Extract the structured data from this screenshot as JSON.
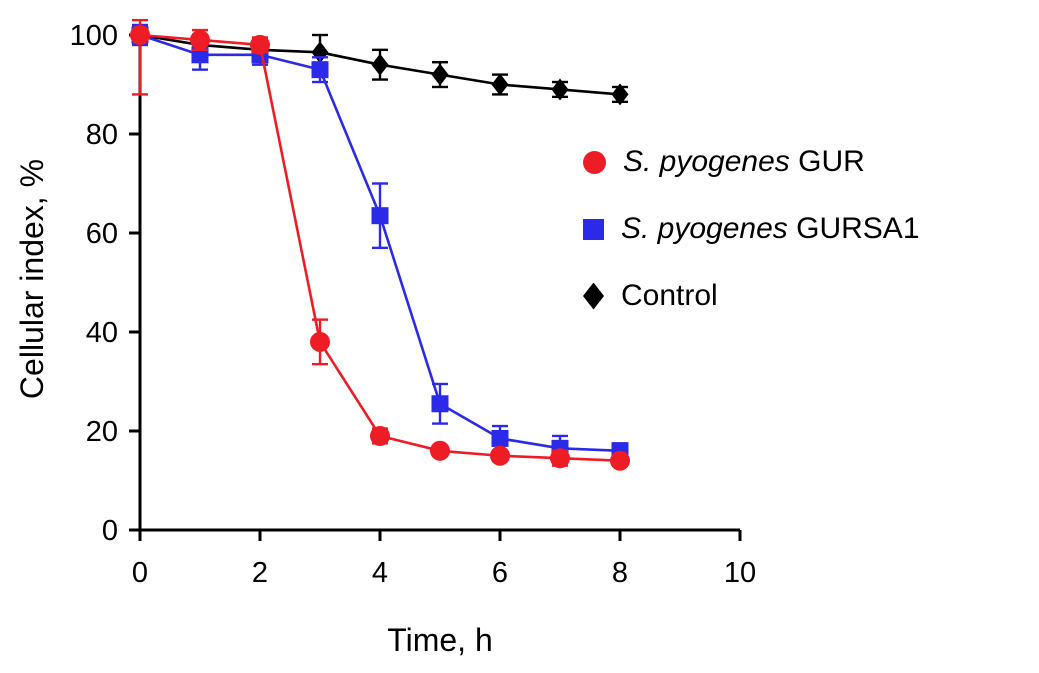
{
  "chart_data": {
    "type": "line",
    "title": "",
    "xlabel": "Time, h",
    "ylabel": "Cellular index, %",
    "xlim": [
      0,
      10
    ],
    "ylim": [
      0,
      100
    ],
    "xticks": [
      0,
      2,
      4,
      6,
      8,
      10
    ],
    "yticks": [
      0,
      20,
      40,
      60,
      80,
      100
    ],
    "grid": false,
    "legend_position": "right-inside",
    "background": "#ffffff",
    "axis_color": "#000000",
    "x": [
      0,
      1,
      2,
      3,
      4,
      5,
      6,
      7,
      8
    ],
    "series": [
      {
        "label": "S. pyogenes GUR",
        "label_italic": "S. pyogenes",
        "label_rest": " GUR",
        "color": "#ee1c25",
        "marker": "circle",
        "values": [
          100,
          99,
          98,
          38,
          19,
          16,
          15,
          14.5,
          14
        ],
        "errors": [
          [
            12,
            3
          ],
          2,
          1.5,
          4.5,
          1.5,
          1,
          1,
          1.5,
          1
        ]
      },
      {
        "label": "S. pyogenes GURSA1",
        "label_italic": "S. pyogenes",
        "label_rest": " GURSA1",
        "color": "#2a2ae8",
        "marker": "square",
        "values": [
          100,
          96,
          96,
          93,
          63.5,
          25.5,
          18.5,
          16.5,
          16
        ],
        "errors": [
          2,
          3,
          2,
          2.5,
          6.5,
          4,
          2.5,
          2.5,
          1.5
        ]
      },
      {
        "label": "Control",
        "label_italic": "",
        "label_rest": "Control",
        "color": "#000000",
        "marker": "diamond",
        "values": [
          100,
          98,
          97,
          96.5,
          94,
          92,
          90,
          89,
          88
        ],
        "errors": [
          2,
          2,
          2,
          3.5,
          3,
          2.5,
          2,
          1.5,
          1.5
        ]
      }
    ]
  }
}
